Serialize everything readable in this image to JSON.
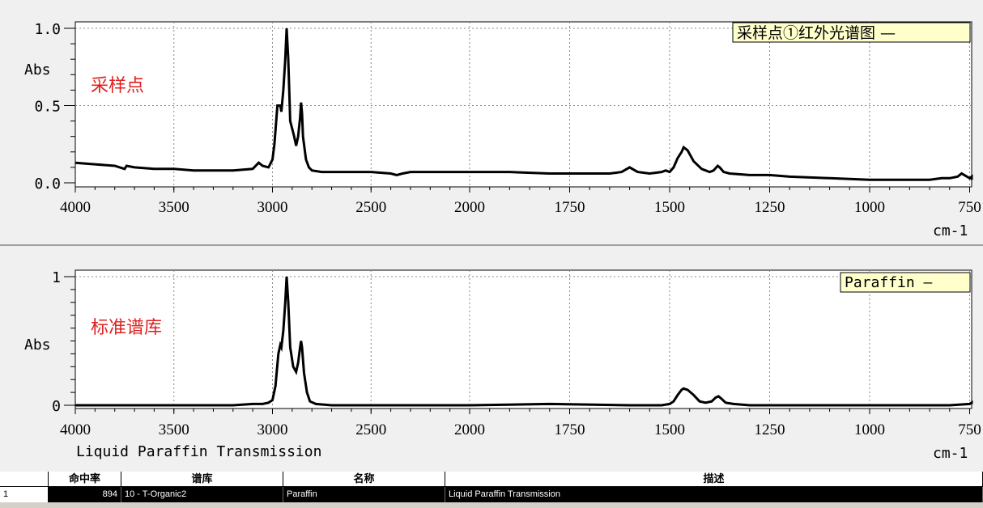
{
  "chart_data": [
    {
      "type": "line",
      "legend": "采样点①红外光谱图 —",
      "panel_label": "采样点",
      "ylabel": "Abs",
      "xlabel": "cm-1",
      "xlim": [
        4000,
        720
      ],
      "ylim": [
        0,
        1.0
      ],
      "yticks": [
        "1.0",
        "0.5",
        "0.0"
      ],
      "xticks": [
        "4000",
        "3500",
        "3000",
        "2500",
        "2000",
        "1750",
        "1500",
        "1250",
        "1000",
        "750"
      ],
      "grid": true,
      "series": [
        {
          "x": [
            4000,
            3900,
            3800,
            3750,
            3740,
            3700,
            3600,
            3500,
            3400,
            3300,
            3200,
            3100,
            3070,
            3050,
            3020,
            3000,
            2990,
            2975,
            2960,
            2955,
            2945,
            2935,
            2928,
            2920,
            2910,
            2890,
            2880,
            2870,
            2860,
            2855,
            2850,
            2845,
            2830,
            2815,
            2800,
            2750,
            2700,
            2600,
            2500,
            2400,
            2370,
            2340,
            2300,
            2200,
            2100,
            2000,
            1900,
            1800,
            1700,
            1650,
            1620,
            1600,
            1580,
            1550,
            1520,
            1510,
            1500,
            1490,
            1480,
            1470,
            1465,
            1455,
            1440,
            1420,
            1400,
            1390,
            1380,
            1375,
            1365,
            1350,
            1300,
            1250,
            1200,
            1100,
            1000,
            900,
            850,
            820,
            800,
            780,
            770,
            750,
            730,
            720
          ],
          "y": [
            0.13,
            0.12,
            0.11,
            0.09,
            0.11,
            0.1,
            0.09,
            0.09,
            0.08,
            0.08,
            0.08,
            0.09,
            0.13,
            0.11,
            0.1,
            0.15,
            0.25,
            0.5,
            0.5,
            0.46,
            0.6,
            0.8,
            1.0,
            0.8,
            0.4,
            0.3,
            0.24,
            0.3,
            0.42,
            0.52,
            0.45,
            0.3,
            0.15,
            0.1,
            0.08,
            0.07,
            0.07,
            0.07,
            0.07,
            0.06,
            0.05,
            0.06,
            0.07,
            0.07,
            0.07,
            0.07,
            0.07,
            0.06,
            0.06,
            0.06,
            0.07,
            0.1,
            0.07,
            0.06,
            0.07,
            0.08,
            0.07,
            0.1,
            0.16,
            0.2,
            0.23,
            0.21,
            0.14,
            0.09,
            0.07,
            0.08,
            0.11,
            0.1,
            0.07,
            0.06,
            0.05,
            0.05,
            0.04,
            0.03,
            0.02,
            0.02,
            0.02,
            0.03,
            0.03,
            0.04,
            0.06,
            0.03,
            0.04,
            0.02
          ]
        }
      ]
    },
    {
      "type": "line",
      "legend": "Paraffin —",
      "panel_label": "标准谱库",
      "subtitle": "Liquid Paraffin  Transmission",
      "ylabel": "Abs",
      "xlabel": "cm-1",
      "xlim": [
        4000,
        720
      ],
      "ylim": [
        0,
        1
      ],
      "yticks": [
        "1",
        "0"
      ],
      "xticks": [
        "4000",
        "3500",
        "3000",
        "2500",
        "2000",
        "1750",
        "1500",
        "1250",
        "1000",
        "750"
      ],
      "grid": true,
      "series": [
        {
          "x": [
            4000,
            3500,
            3200,
            3100,
            3050,
            3020,
            3000,
            2985,
            2970,
            2960,
            2955,
            2945,
            2935,
            2928,
            2920,
            2910,
            2895,
            2880,
            2870,
            2860,
            2855,
            2850,
            2840,
            2825,
            2810,
            2780,
            2700,
            2500,
            2000,
            1800,
            1600,
            1520,
            1500,
            1490,
            1480,
            1470,
            1465,
            1455,
            1440,
            1425,
            1410,
            1395,
            1385,
            1378,
            1370,
            1360,
            1340,
            1300,
            1000,
            800,
            750,
            730,
            720
          ],
          "y": [
            0,
            0,
            0,
            0.01,
            0.01,
            0.02,
            0.04,
            0.15,
            0.4,
            0.47,
            0.45,
            0.58,
            0.8,
            1.0,
            0.8,
            0.45,
            0.3,
            0.26,
            0.33,
            0.45,
            0.5,
            0.45,
            0.25,
            0.1,
            0.03,
            0.01,
            0,
            0,
            0,
            0.01,
            0,
            0,
            0.01,
            0.03,
            0.08,
            0.12,
            0.13,
            0.12,
            0.08,
            0.03,
            0.02,
            0.03,
            0.06,
            0.07,
            0.05,
            0.02,
            0.01,
            0,
            0,
            0,
            0.01,
            0.02,
            0.01
          ]
        }
      ]
    }
  ],
  "results_table": {
    "headers": [
      "命中率",
      "谱库",
      "名称",
      "描述"
    ],
    "rows": [
      {
        "num": "1",
        "score": "894",
        "library": "10 - T-Organic2",
        "name": "Paraffin",
        "description": "Liquid Paraffin  Transmission"
      }
    ]
  }
}
